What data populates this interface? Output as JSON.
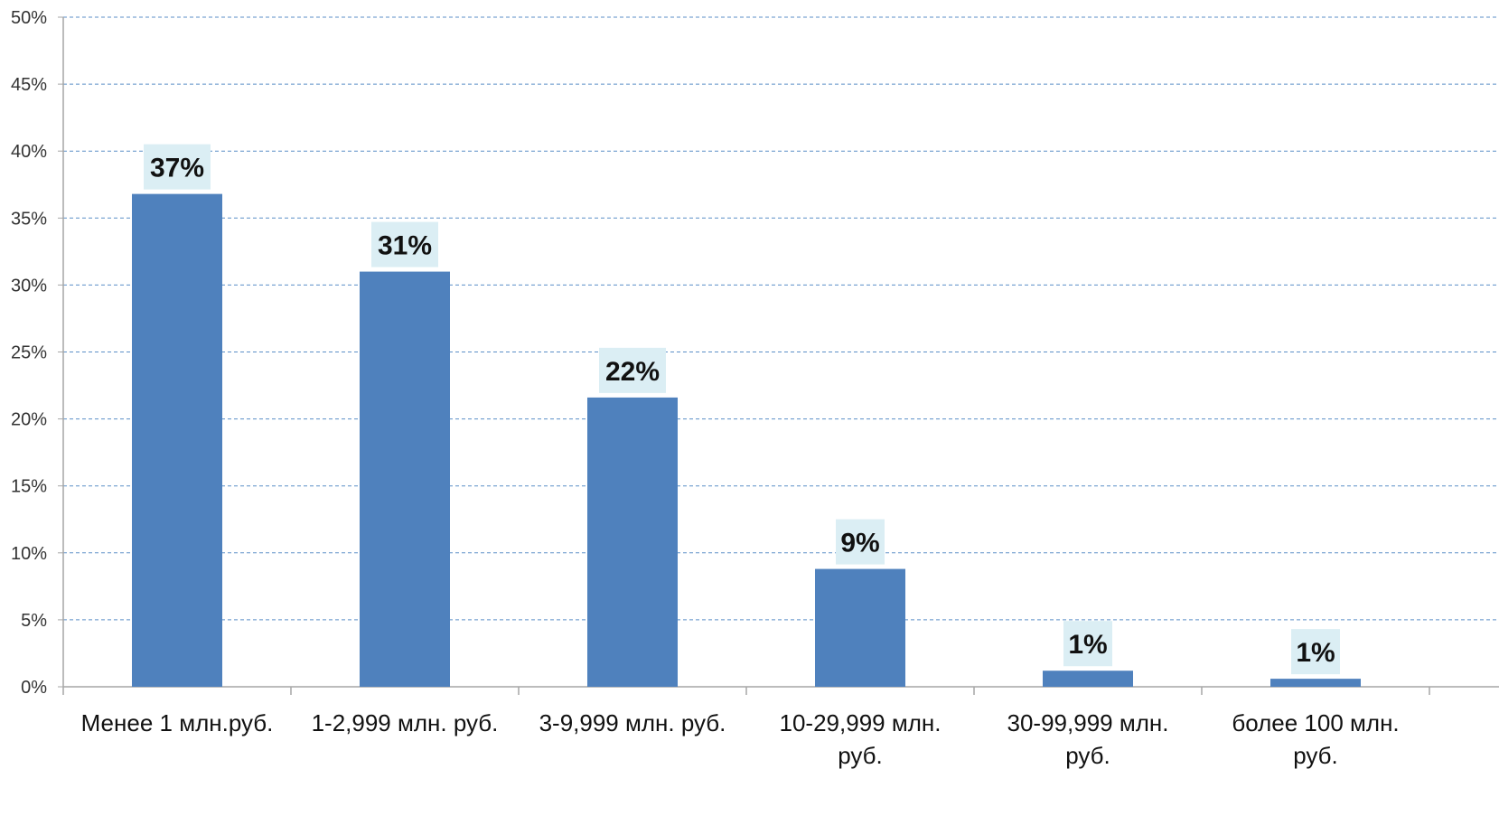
{
  "chart_data": {
    "type": "bar",
    "title": "",
    "xlabel": "",
    "ylabel": "",
    "categories": [
      [
        "Менее 1 млн.руб."
      ],
      [
        "1-2,999 млн. руб."
      ],
      [
        "3-9,999 млн. руб."
      ],
      [
        "10-29,999 млн.",
        "руб."
      ],
      [
        "30-99,999 млн.",
        "руб."
      ],
      [
        "более 100 млн.",
        "руб."
      ]
    ],
    "values": [
      36.8,
      31.0,
      21.6,
      8.8,
      1.2,
      0.6
    ],
    "data_labels": [
      "37%",
      "31%",
      "22%",
      "9%",
      "1%",
      "1%"
    ],
    "ylim": [
      0,
      50
    ],
    "yticks": [
      "0%",
      "5%",
      "10%",
      "15%",
      "20%",
      "25%",
      "30%",
      "35%",
      "40%",
      "45%",
      "50%"
    ],
    "grid": true,
    "legend": "none",
    "colors": {
      "bar": "#4f81bd",
      "label_bg": "#dbeef4",
      "grid": "#5b8fc7",
      "axis": "#a6a6a6"
    }
  }
}
